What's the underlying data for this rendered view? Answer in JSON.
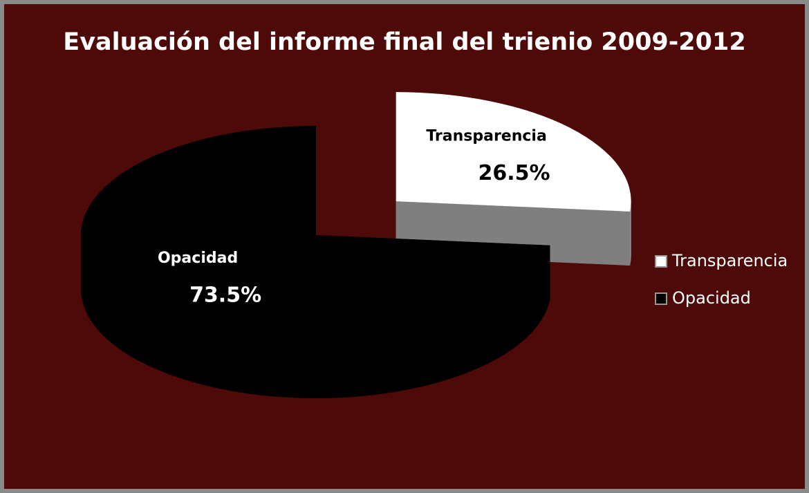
{
  "chart_data": {
    "type": "pie",
    "title": "Evaluación del informe final del trienio 2009-2012",
    "categories": [
      "Transparencia",
      "Opacidad"
    ],
    "values": [
      26.5,
      73.5
    ],
    "value_labels": [
      "26.5%",
      "73.5%"
    ],
    "colors": [
      "#ffffff",
      "#000000"
    ],
    "legend": "right"
  }
}
